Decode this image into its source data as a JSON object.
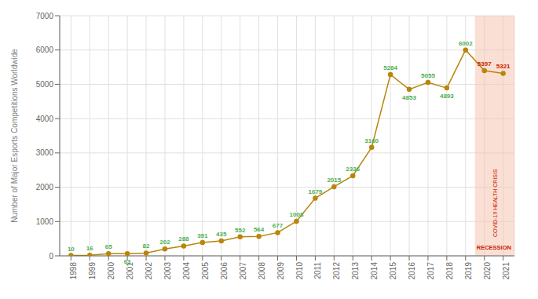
{
  "chart_data": {
    "type": "line",
    "x": [
      1998,
      1999,
      2000,
      2001,
      2002,
      2003,
      2004,
      2005,
      2006,
      2007,
      2008,
      2009,
      2010,
      2011,
      2012,
      2013,
      2014,
      2015,
      2016,
      2017,
      2018,
      2019,
      2020,
      2021
    ],
    "values": [
      10,
      16,
      65,
      63,
      82,
      202,
      288,
      391,
      435,
      552,
      564,
      677,
      1008,
      1679,
      2015,
      2336,
      3160,
      5284,
      4853,
      5055,
      4893,
      6002,
      5397,
      5321
    ],
    "color": "#B8860B",
    "marker": "circle",
    "ylabel": "Number of Major Esports Competitions Worldwide",
    "xlim": [
      1997.4,
      2021.6
    ],
    "xticks": [
      1998,
      1999,
      2000,
      2001,
      2002,
      2003,
      2004,
      2005,
      2006,
      2007,
      2008,
      2009,
      2010,
      2011,
      2012,
      2013,
      2014,
      2015,
      2016,
      2017,
      2018,
      2019,
      2020,
      2021
    ],
    "ylim": [
      0,
      7000
    ],
    "yticks": [
      0,
      1000,
      2000,
      3000,
      4000,
      5000,
      6000,
      7000
    ],
    "grid": true,
    "data_labels": true,
    "data_label_color": "#4CAF50",
    "shaded_region": {
      "x": [
        2019.5,
        2021.6
      ],
      "color": "#F5C5B0",
      "label": "RECESSION",
      "sublabel": "COVID-19 HEALTH CRISIS",
      "label_color": "#CC2200",
      "x_values": [
        2020,
        2021
      ]
    }
  }
}
